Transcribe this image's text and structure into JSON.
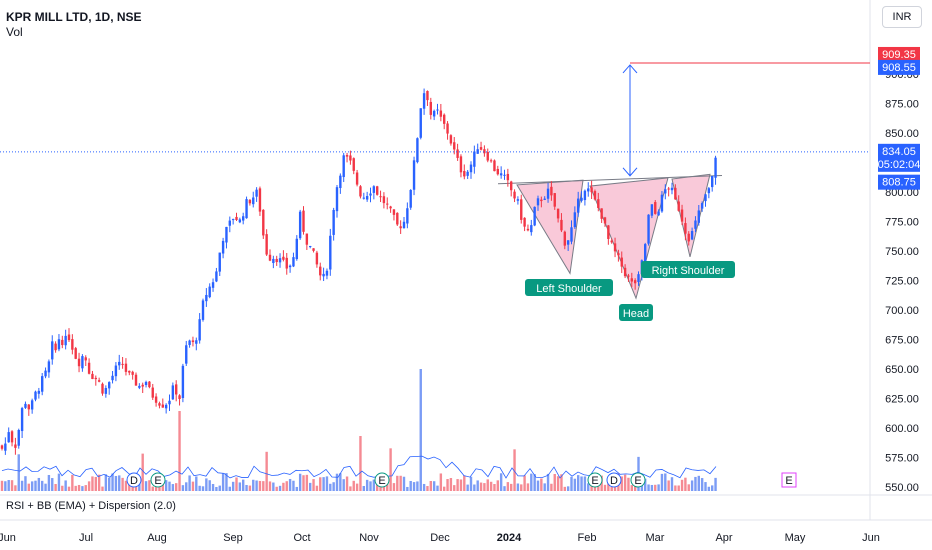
{
  "header": {
    "symbol": "KPR MILL LTD, 1D, NSE",
    "volume_label": "Vol",
    "currency_button": "INR",
    "indicator_label": "RSI + BB (EMA) + Dispersion (2.0)"
  },
  "chart_data": {
    "type": "candlestick",
    "title": "KPR MILL LTD, 1D, NSE",
    "ylim": [
      545,
      935
    ],
    "y_ticks": [
      550,
      575,
      600,
      625,
      650,
      675,
      700,
      725,
      750,
      775,
      800,
      825,
      850,
      875,
      900
    ],
    "y_tick_labels": [
      "550.00",
      "575.00",
      "600.00",
      "625.00",
      "650.00",
      "675.00",
      "700.00",
      "725.00",
      "750.00",
      "775.00",
      "800.00",
      "825.00",
      "850.00",
      "875.00",
      "900.00"
    ],
    "x_ticks": [
      "Jun",
      "Jul",
      "Aug",
      "Sep",
      "Oct",
      "Nov",
      "Dec",
      "2024",
      "Feb",
      "Mar",
      "Apr",
      "May",
      "Jun"
    ],
    "price_labels": [
      {
        "value": 909.35,
        "text": "909.35",
        "color": "#f23645"
      },
      {
        "value": 908.55,
        "text": "908.55",
        "color": "#2962ff"
      },
      {
        "value": 834.05,
        "text": "834.05",
        "sub": "05:02:04",
        "color": "#2962ff"
      },
      {
        "value": 808.75,
        "text": "808.75",
        "color": "#2962ff"
      }
    ],
    "pattern": {
      "left_shoulder_label": "Left Shoulder",
      "head_label": "Head",
      "right_shoulder_label": "Right Shoulder",
      "neckline": [
        [
          498,
          807
        ],
        [
          722,
          814
        ]
      ],
      "left_shoulder": [
        [
          517,
          806
        ],
        [
          570,
          731
        ],
        [
          583,
          810
        ]
      ],
      "head": [
        [
          590,
          805
        ],
        [
          636,
          710
        ],
        [
          668,
          812
        ]
      ],
      "right_shoulder": [
        [
          672,
          811
        ],
        [
          690,
          745
        ],
        [
          710,
          815
        ]
      ],
      "target_level": 909.35
    },
    "event_markers": [
      "D",
      "E",
      "E",
      "E",
      "D",
      "E",
      "E"
    ],
    "colors": {
      "up": "#2962ff",
      "down": "#f23645",
      "pattern_fill": "#f8bbd0",
      "label_bg": "#089981"
    },
    "anchors": [
      [
        0,
        585
      ],
      [
        4,
        580
      ],
      [
        8,
        600
      ],
      [
        12,
        590
      ],
      [
        16,
        585
      ],
      [
        20,
        605
      ],
      [
        24,
        625
      ],
      [
        30,
        615
      ],
      [
        36,
        630
      ],
      [
        42,
        640
      ],
      [
        48,
        650
      ],
      [
        52,
        670
      ],
      [
        56,
        665
      ],
      [
        60,
        680
      ],
      [
        64,
        670
      ],
      [
        68,
        680
      ],
      [
        72,
        670
      ],
      [
        76,
        660
      ],
      [
        80,
        655
      ],
      [
        84,
        665
      ],
      [
        88,
        650
      ],
      [
        92,
        645
      ],
      [
        98,
        640
      ],
      [
        104,
        630
      ],
      [
        110,
        640
      ],
      [
        116,
        650
      ],
      [
        122,
        655
      ],
      [
        128,
        645
      ],
      [
        134,
        640
      ],
      [
        140,
        635
      ],
      [
        146,
        640
      ],
      [
        150,
        630
      ],
      [
        156,
        625
      ],
      [
        162,
        620
      ],
      [
        168,
        622
      ],
      [
        174,
        635
      ],
      [
        180,
        625
      ],
      [
        184,
        660
      ],
      [
        188,
        675
      ],
      [
        194,
        670
      ],
      [
        200,
        690
      ],
      [
        204,
        710
      ],
      [
        210,
        720
      ],
      [
        216,
        730
      ],
      [
        222,
        760
      ],
      [
        228,
        770
      ],
      [
        234,
        780
      ],
      [
        240,
        775
      ],
      [
        246,
        790
      ],
      [
        252,
        795
      ],
      [
        258,
        800
      ],
      [
        262,
        770
      ],
      [
        266,
        750
      ],
      [
        270,
        745
      ],
      [
        276,
        745
      ],
      [
        282,
        740
      ],
      [
        288,
        735
      ],
      [
        294,
        745
      ],
      [
        300,
        780
      ],
      [
        306,
        760
      ],
      [
        312,
        750
      ],
      [
        318,
        735
      ],
      [
        322,
        725
      ],
      [
        326,
        730
      ],
      [
        330,
        760
      ],
      [
        334,
        790
      ],
      [
        338,
        810
      ],
      [
        344,
        830
      ],
      [
        350,
        825
      ],
      [
        356,
        810
      ],
      [
        362,
        795
      ],
      [
        368,
        800
      ],
      [
        374,
        805
      ],
      [
        380,
        795
      ],
      [
        386,
        790
      ],
      [
        392,
        780
      ],
      [
        398,
        770
      ],
      [
        404,
        775
      ],
      [
        410,
        800
      ],
      [
        416,
        835
      ],
      [
        420,
        870
      ],
      [
        424,
        885
      ],
      [
        428,
        880
      ],
      [
        432,
        860
      ],
      [
        436,
        870
      ],
      [
        442,
        860
      ],
      [
        448,
        850
      ],
      [
        454,
        835
      ],
      [
        460,
        820
      ],
      [
        466,
        815
      ],
      [
        472,
        825
      ],
      [
        478,
        840
      ],
      [
        484,
        835
      ],
      [
        488,
        830
      ],
      [
        494,
        820
      ],
      [
        500,
        815
      ],
      [
        506,
        810
      ],
      [
        512,
        800
      ],
      [
        518,
        790
      ],
      [
        524,
        770
      ],
      [
        530,
        765
      ],
      [
        536,
        790
      ],
      [
        542,
        795
      ],
      [
        548,
        800
      ],
      [
        554,
        790
      ],
      [
        560,
        770
      ],
      [
        566,
        755
      ],
      [
        572,
        770
      ],
      [
        578,
        790
      ],
      [
        584,
        805
      ],
      [
        590,
        800
      ],
      [
        596,
        790
      ],
      [
        602,
        780
      ],
      [
        608,
        760
      ],
      [
        614,
        750
      ],
      [
        620,
        740
      ],
      [
        626,
        730
      ],
      [
        632,
        722
      ],
      [
        638,
        725
      ],
      [
        642,
        740
      ],
      [
        646,
        760
      ],
      [
        650,
        790
      ],
      [
        656,
        780
      ],
      [
        660,
        790
      ],
      [
        664,
        800
      ],
      [
        668,
        805
      ],
      [
        672,
        800
      ],
      [
        676,
        790
      ],
      [
        680,
        785
      ],
      [
        684,
        770
      ],
      [
        690,
        760
      ],
      [
        696,
        775
      ],
      [
        702,
        790
      ],
      [
        708,
        800
      ],
      [
        712,
        810
      ],
      [
        716,
        834
      ]
    ]
  }
}
